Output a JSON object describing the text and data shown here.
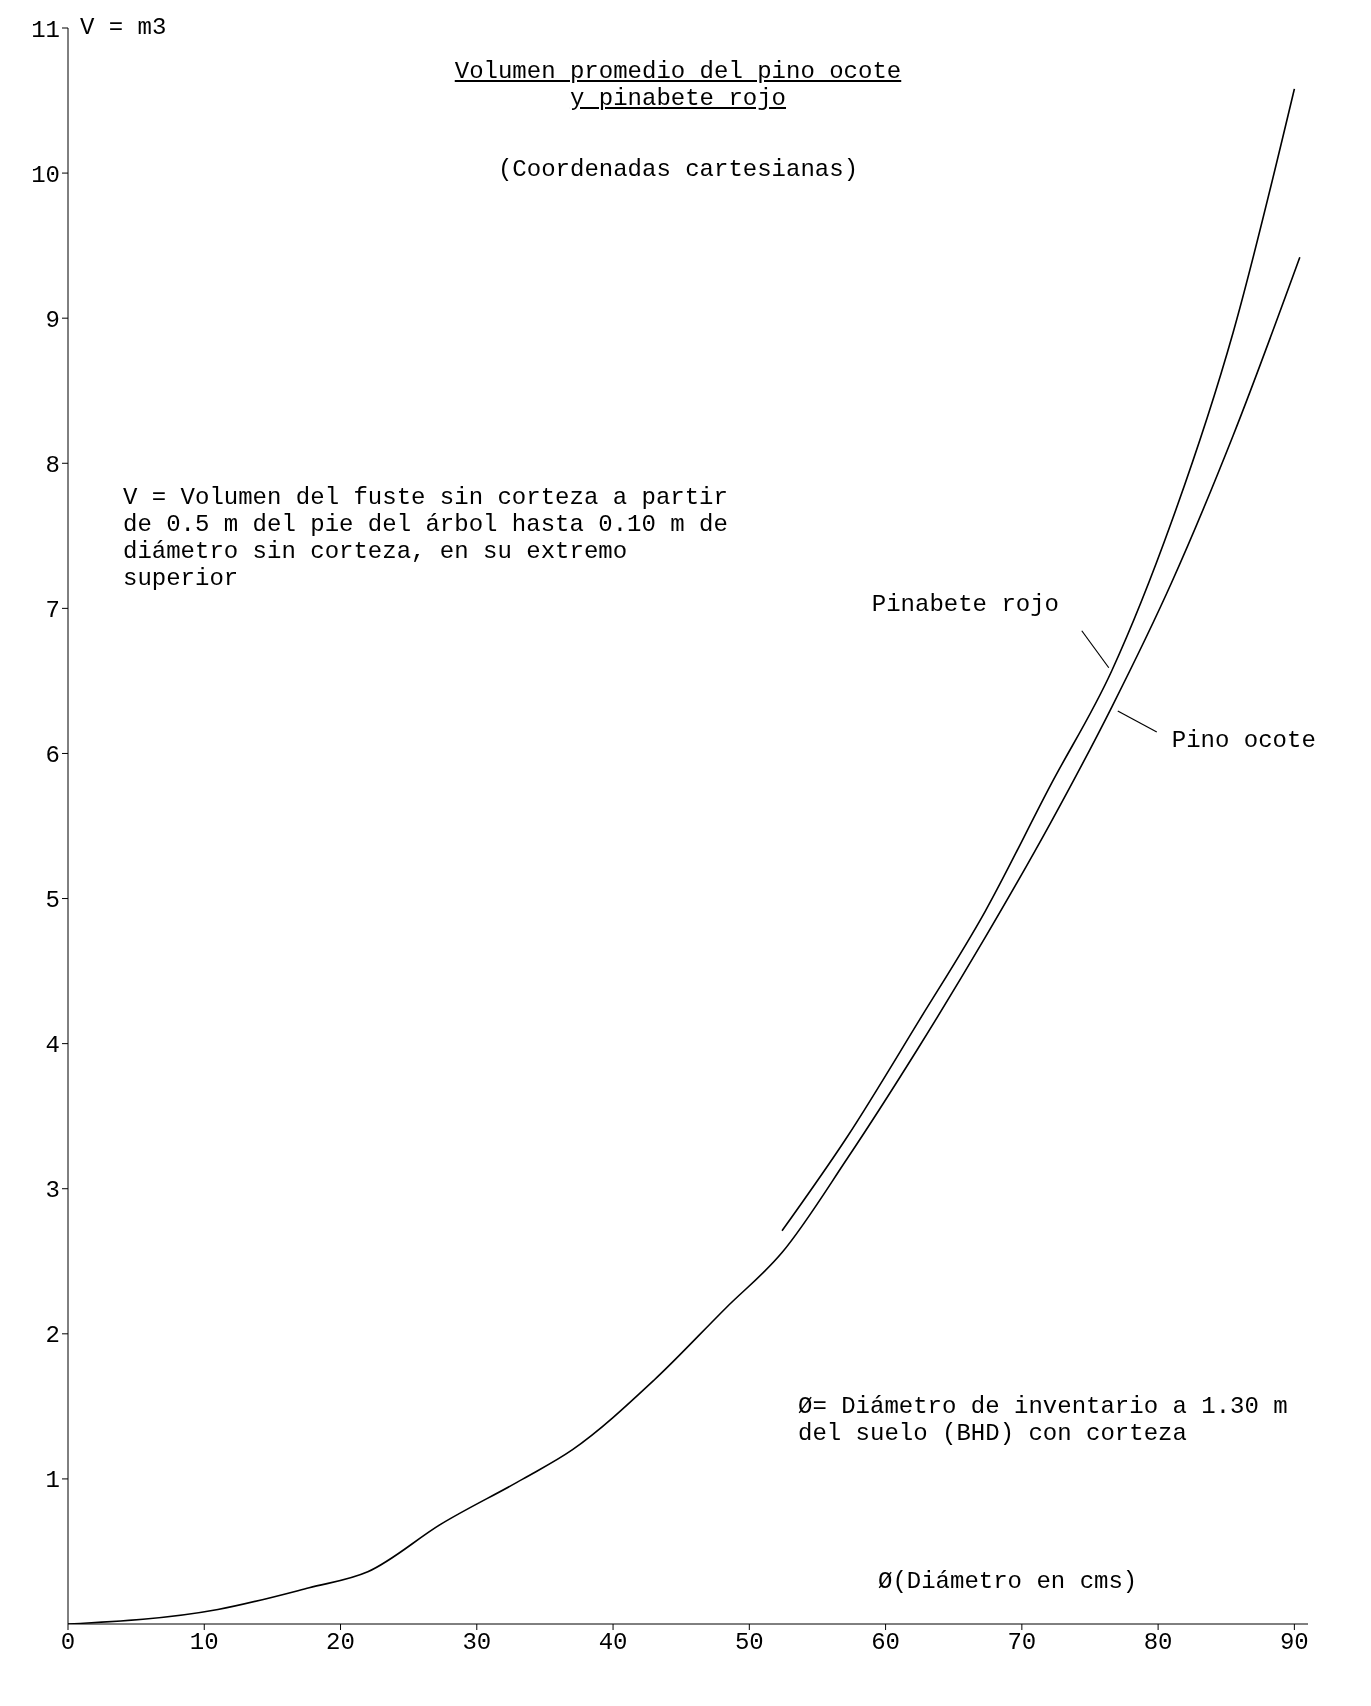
{
  "chart_data": {
    "type": "line",
    "title": "Volumen promedio del pino ocote y pinabete rojo",
    "subtitle": "(Coordenadas cartesianas)",
    "xlabel": "Ø(Diámetro en cms)",
    "ylabel": "V = m3",
    "annotations": [
      "V = Volumen del fuste sin corteza a partir de 0.5 m del pie del árbol hasta 0.10 m de diámetro sin corteza, en su extremo superior",
      "Ø= Diámetro de inventario a 1.30 m del suelo (BHD) con corteza"
    ],
    "series": [
      {
        "name": "Pinabete rojo",
        "color": "#000000",
        "x": [
          52.4,
          57.2,
          62.4,
          67.3,
          72.1,
          76.6,
          81,
          85.5,
          90
        ],
        "values": [
          2.71,
          3.36,
          4.15,
          4.91,
          5.78,
          6.57,
          7.6,
          8.9,
          10.58
        ]
      },
      {
        "name": "Pino ocote",
        "color": "#000000",
        "x": [
          0,
          11,
          17.7,
          22,
          27.4,
          33.4,
          37,
          43,
          48.3,
          52.4,
          57.2,
          62.4,
          67.3,
          72.1,
          76.6,
          81,
          85.5,
          90.4
        ],
        "values": [
          0,
          0.1,
          0.25,
          0.36,
          0.69,
          1.0,
          1.2,
          1.68,
          2.18,
          2.56,
          3.21,
          3.97,
          4.73,
          5.52,
          6.32,
          7.18,
          8.19,
          9.42
        ]
      }
    ],
    "xlim": [
      0,
      91
    ],
    "xticks": [
      0,
      10,
      20,
      30,
      40,
      50,
      60,
      70,
      80,
      90
    ],
    "ylim": [
      0,
      11
    ],
    "yticks": [
      1,
      2,
      3,
      4,
      5,
      6,
      7,
      8,
      9,
      10,
      11
    ],
    "grid": false,
    "marker": "none",
    "line_style": "solid"
  }
}
